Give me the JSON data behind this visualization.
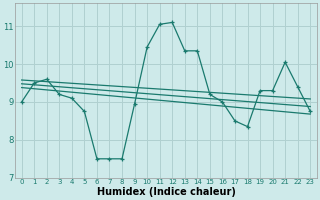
{
  "xlabel": "Humidex (Indice chaleur)",
  "background_color": "#ceeaea",
  "grid_color": "#b0d0d0",
  "line_color": "#1a7a6e",
  "xlim": [
    -0.5,
    23.5
  ],
  "ylim": [
    7,
    11.6
  ],
  "yticks": [
    7,
    8,
    9,
    10,
    11
  ],
  "xticks": [
    0,
    1,
    2,
    3,
    4,
    5,
    6,
    7,
    8,
    9,
    10,
    11,
    12,
    13,
    14,
    15,
    16,
    17,
    18,
    19,
    20,
    21,
    22,
    23
  ],
  "main_line": [
    9.0,
    9.5,
    9.6,
    9.2,
    9.1,
    8.75,
    7.5,
    7.5,
    7.5,
    8.95,
    10.45,
    11.05,
    11.1,
    10.35,
    10.35,
    9.2,
    9.0,
    8.5,
    8.35,
    9.3,
    9.3,
    10.05,
    9.4,
    8.75
  ],
  "trend_lines": [
    [
      9.58,
      9.08
    ],
    [
      9.48,
      8.88
    ],
    [
      9.38,
      8.68
    ]
  ],
  "xlabel_fontsize": 7,
  "ytick_fontsize": 6,
  "xtick_fontsize": 5,
  "xlabel_bold": true
}
